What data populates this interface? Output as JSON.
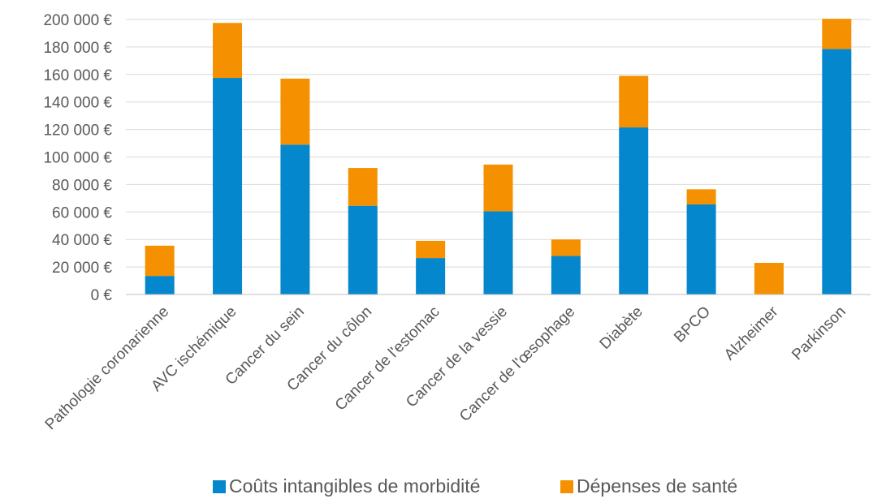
{
  "chart_data": {
    "type": "bar",
    "stacked": true,
    "title": "",
    "xlabel": "",
    "ylabel": "",
    "ylim": [
      0,
      200000
    ],
    "yticks": [
      0,
      20000,
      40000,
      60000,
      80000,
      100000,
      120000,
      140000,
      160000,
      180000,
      200000
    ],
    "ytick_labels": [
      "0 €",
      "20 000 €",
      "40 000 €",
      "60 000 €",
      "80 000 €",
      "100 000 €",
      "120 000 €",
      "140 000 €",
      "160 000 €",
      "180 000 €",
      "200 000 €"
    ],
    "grid": true,
    "legend_position": "bottom",
    "categories": [
      "Pathologie coronarienne",
      "AVC ischémique",
      "Cancer du sein",
      "Cancer du côlon",
      "Cancer de l'estomac",
      "Cancer de la vessie",
      "Cancer de l'œsophage",
      "Diabète",
      "BPCO",
      "Alzheimer",
      "Parkinson"
    ],
    "series": [
      {
        "name": "Coûts intangibles de morbidité",
        "color": "#0487cc",
        "values": [
          13500,
          157500,
          109000,
          64500,
          26500,
          60500,
          28000,
          121500,
          65500,
          0,
          178500
        ]
      },
      {
        "name": "Dépenses de santé",
        "color": "#f59100",
        "values": [
          22000,
          40000,
          48000,
          27500,
          12500,
          34000,
          12000,
          37500,
          11000,
          23000,
          22000
        ]
      }
    ]
  }
}
